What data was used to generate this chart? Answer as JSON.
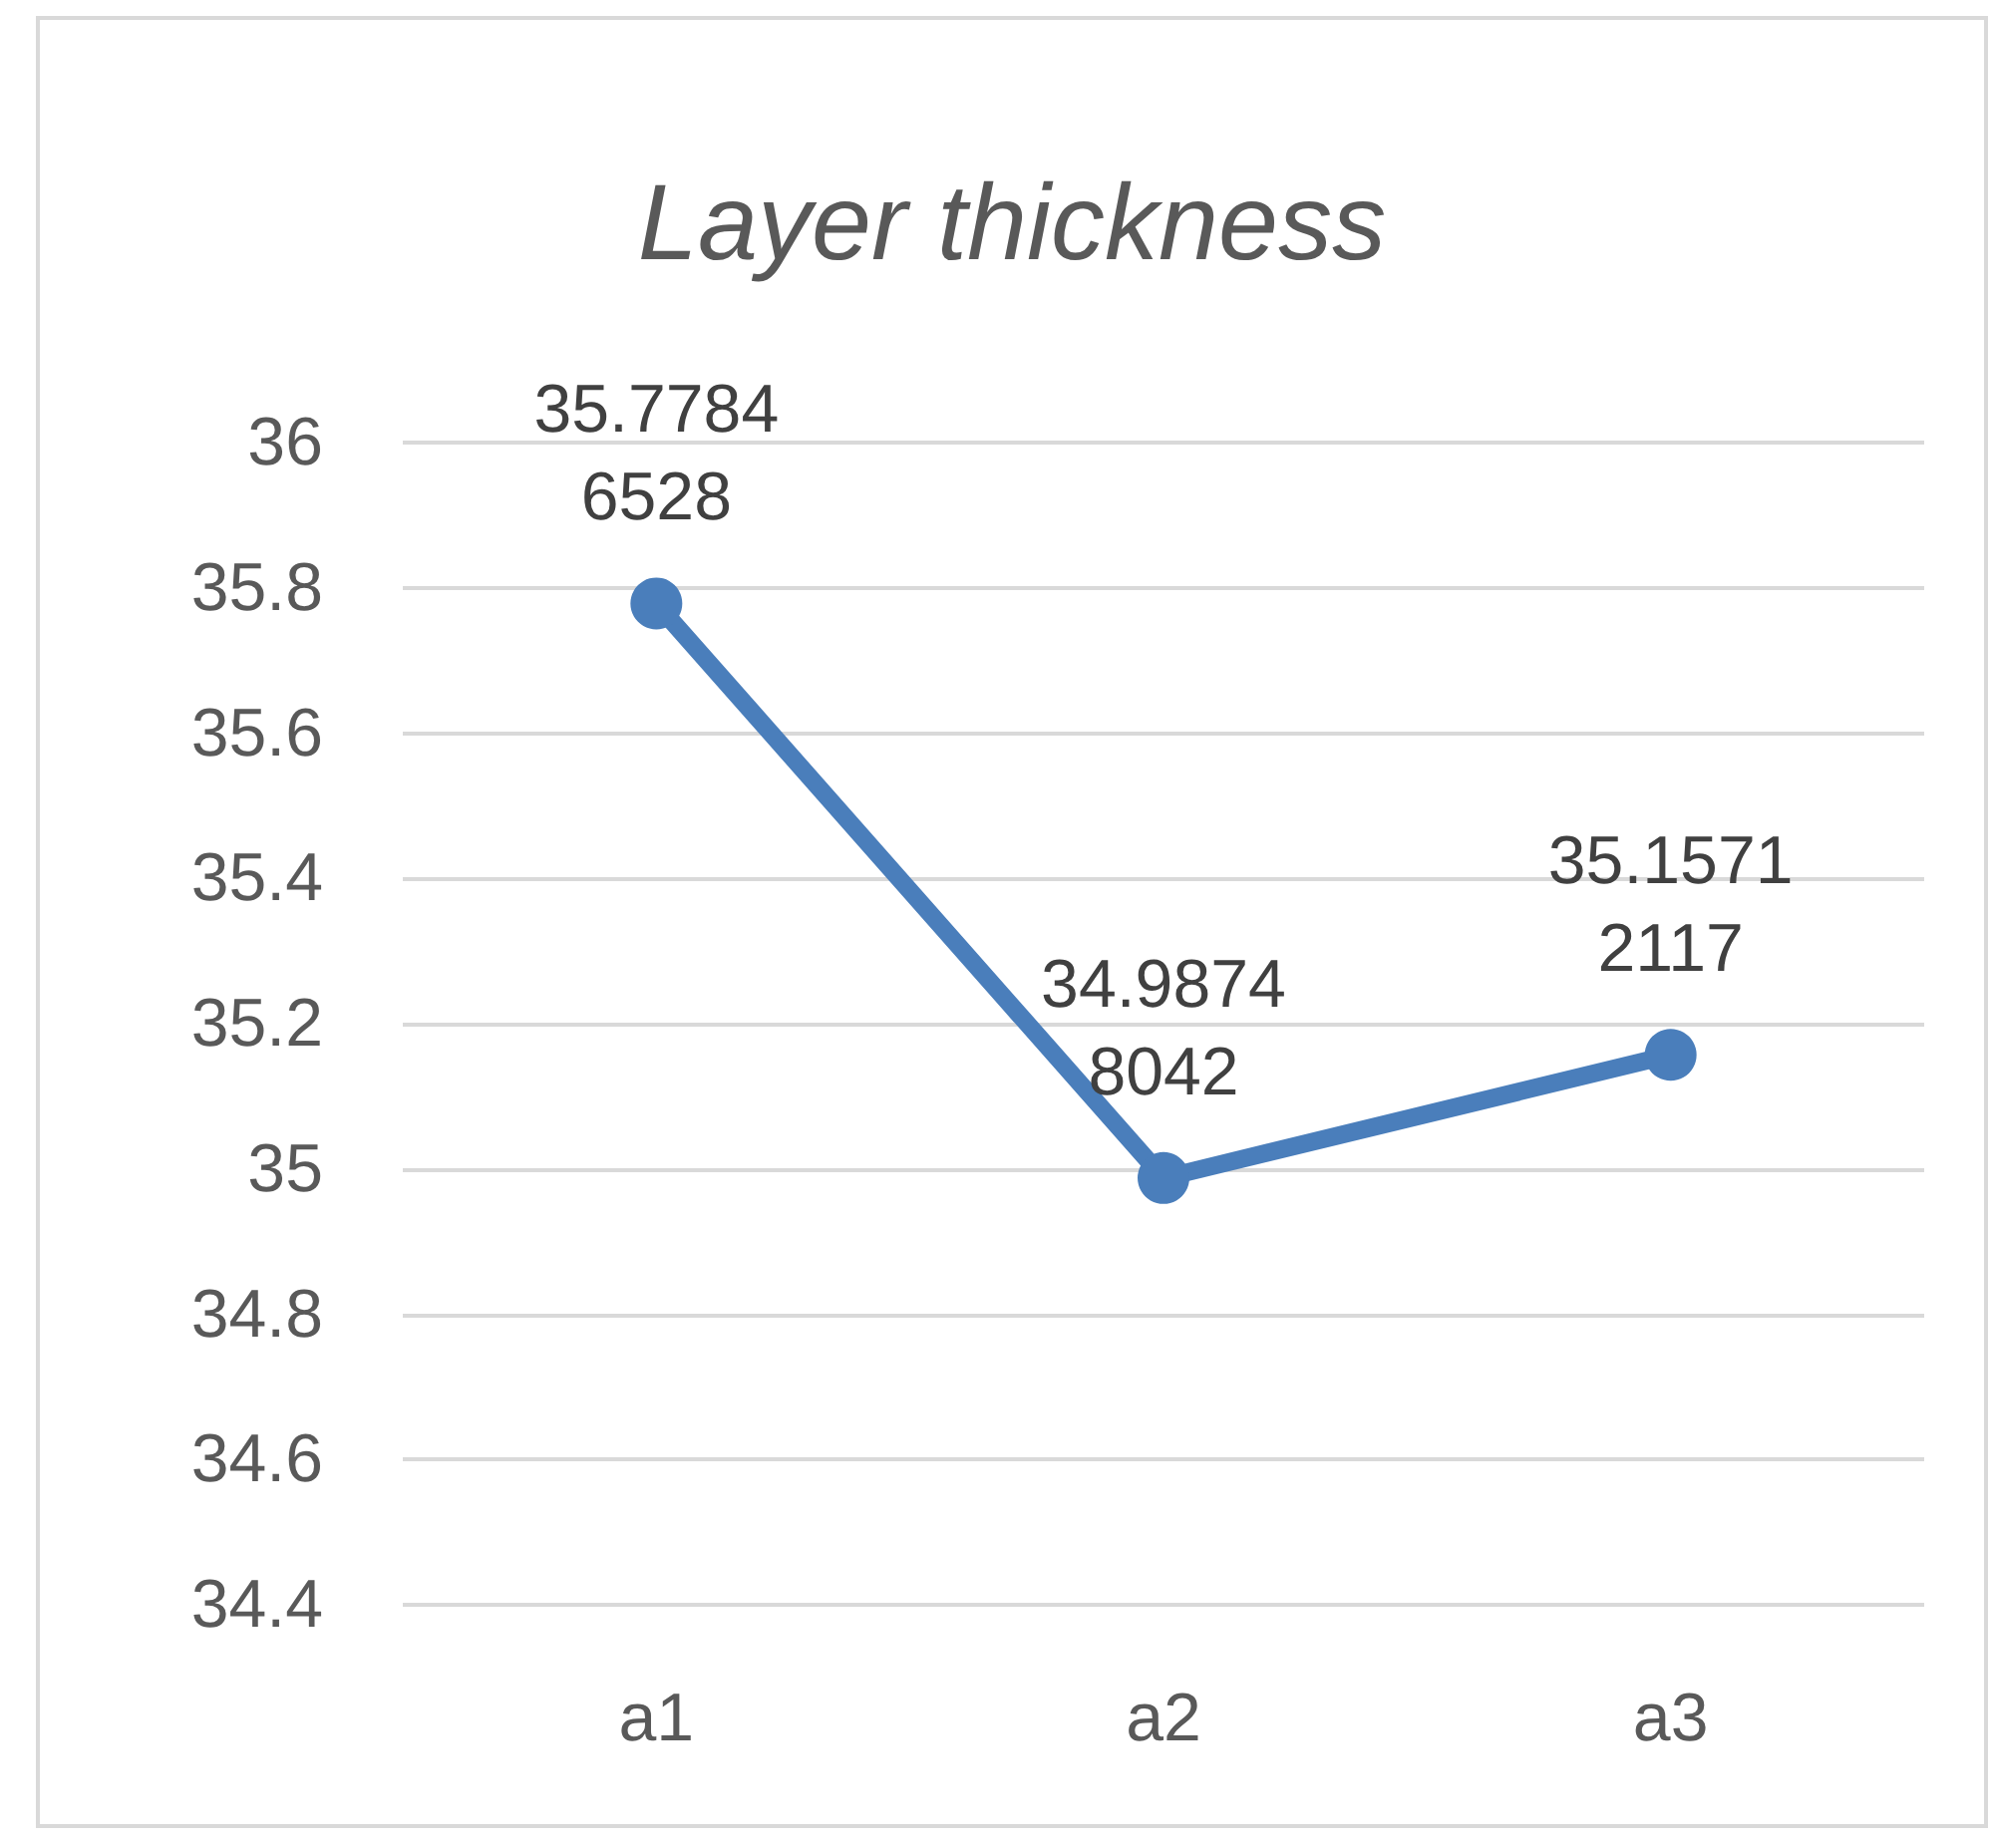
{
  "chart_data": {
    "type": "line",
    "title": "Layer thickness",
    "categories": [
      "a1",
      "a2",
      "a3"
    ],
    "series": [
      {
        "color": "#4a7ebb",
        "values": [
          35.77846528,
          34.98748042,
          35.15712117
        ]
      }
    ],
    "ylim": [
      34.4,
      36
    ],
    "yticks": [
      34.4,
      34.6,
      34.8,
      35,
      35.2,
      35.4,
      35.6,
      35.8,
      36
    ],
    "grid": "y",
    "marker": "circle",
    "line_style": "solid",
    "data_labels": true
  }
}
